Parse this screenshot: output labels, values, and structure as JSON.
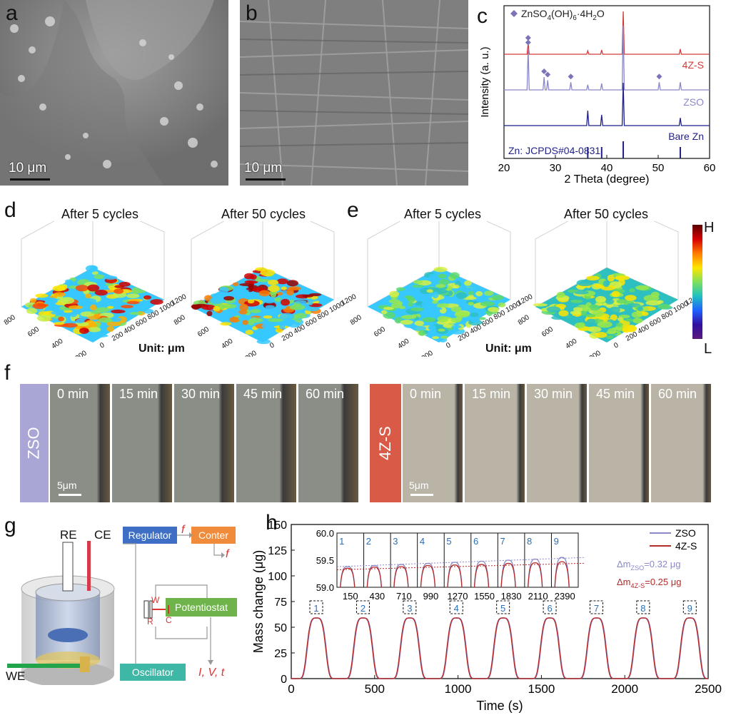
{
  "panel_labels": {
    "a": "a",
    "b": "b",
    "c": "c",
    "d": "d",
    "e": "e",
    "f": "f",
    "g": "g",
    "h": "h"
  },
  "panel_a": {
    "scale": "10 μm"
  },
  "panel_b": {
    "scale": "10 μm"
  },
  "panel_c": {
    "legend": "ZnSO4(OH)6·4H2O",
    "legend_parts": {
      "a": "ZnSO",
      "b": "4",
      "c": "(OH)",
      "d": "6",
      "e": "·4H",
      "f": "2",
      "g": "O"
    },
    "ylabel": "Intensity (a. u.)",
    "xlabel": "2 Theta (degree)",
    "xticks": [
      "20",
      "30",
      "40",
      "50",
      "60"
    ],
    "trace_labels": {
      "z4s": "4Z-S",
      "zso": "ZSO",
      "bare": "Bare Zn"
    },
    "ref": "Zn: JCPDS#04-0831",
    "colors": {
      "z4s": "#d23a3a",
      "zso": "#8a88c8",
      "bare": "#1f1f8a",
      "marker": "#7b74b8"
    }
  },
  "chart_data": [
    {
      "type": "line",
      "title": "",
      "xlabel": "2 Theta (degree)",
      "ylabel": "Intensity (a. u.)",
      "xlim": [
        20,
        60
      ],
      "series": [
        {
          "name": "4Z-S",
          "peaks": [
            [
              24.7,
              0.25
            ],
            [
              36.3,
              0.08
            ],
            [
              39.0,
              0.1
            ],
            [
              43.2,
              1.0
            ],
            [
              54.3,
              0.12
            ]
          ]
        },
        {
          "name": "ZSO",
          "peaks": [
            [
              24.7,
              0.65
            ],
            [
              27.8,
              0.2
            ],
            [
              28.5,
              0.15
            ],
            [
              33.0,
              0.12
            ],
            [
              36.3,
              0.08
            ],
            [
              39.0,
              0.1
            ],
            [
              43.2,
              1.0
            ],
            [
              50.2,
              0.12
            ],
            [
              54.3,
              0.12
            ]
          ]
        },
        {
          "name": "Bare Zn",
          "peaks": [
            [
              36.3,
              0.35
            ],
            [
              39.0,
              0.25
            ],
            [
              43.2,
              1.0
            ],
            [
              54.3,
              0.18
            ]
          ]
        }
      ],
      "reference": "Zn: JCPDS#04-0831",
      "reference_lines": [
        36.3,
        39.0,
        43.2,
        54.3
      ]
    },
    {
      "type": "line",
      "xlabel": "Time (s)",
      "ylabel": "Mass change (μg)",
      "xlim": [
        0,
        2500
      ],
      "ylim": [
        0,
        150
      ],
      "xticks": [
        0,
        500,
        1000,
        1500,
        2000,
        2500
      ],
      "yticks": [
        0,
        25,
        50,
        75,
        100,
        125,
        150
      ],
      "series": [
        {
          "name": "ZSO"
        },
        {
          "name": "4Z-S"
        }
      ],
      "peak_centers": [
        150,
        430,
        710,
        990,
        1270,
        1550,
        1830,
        2110,
        2390
      ],
      "peak_height": 59,
      "inset": {
        "ylim": [
          59.0,
          60.0
        ],
        "yticks": [
          "60.0",
          "59.5",
          "59.0"
        ],
        "xticks": [
          "150",
          "430",
          "710",
          "990",
          "1270",
          "1550",
          "1830",
          "2110",
          "2390"
        ],
        "cycle_numbers": [
          "1",
          "2",
          "3",
          "4",
          "5",
          "6",
          "7",
          "8",
          "9"
        ],
        "zso_peaks": [
          59.38,
          59.4,
          59.42,
          59.44,
          59.46,
          59.48,
          59.5,
          59.52,
          59.55
        ],
        "z4s_peaks": [
          59.35,
          59.37,
          59.38,
          59.4,
          59.41,
          59.42,
          59.44,
          59.45,
          59.47
        ]
      },
      "annotations": [
        "Δm_ZSO=0.32 μg",
        "Δm_4Z-S=0.25 μg"
      ]
    }
  ],
  "panel_d": {
    "t1": "After 5 cycles",
    "t2": "After 50 cycles",
    "unit": "Unit: μm"
  },
  "panel_e": {
    "t1": "After 5 cycles",
    "t2": "After 50 cycles",
    "unit": "Unit: μm"
  },
  "axes3d": {
    "right": [
      "0",
      "200",
      "400",
      "600",
      "800",
      "1000",
      "1200"
    ],
    "left": [
      "200",
      "400",
      "600",
      "800"
    ]
  },
  "colorbar": {
    "high": "H",
    "low": "L"
  },
  "panel_f": {
    "zso_label": "ZSO",
    "z4s_label": "4Z-S",
    "times": [
      "0 min",
      "15 min",
      "30 min",
      "45 min",
      "60 min"
    ],
    "scale": "5μm",
    "zso_color": "#a9a6d6",
    "z4s_color": "#d95a47"
  },
  "panel_g": {
    "re": "RE",
    "ce": "CE",
    "we": "WE",
    "regulator": "Regulator",
    "conter": "Conter",
    "potentiostat": "Potentiostat",
    "oscillator": "Oscillator",
    "f": "f",
    "w": "W",
    "r": "R",
    "c": "C",
    "outputs": "I, V, t",
    "colors": {
      "regulator": "#3e6fc4",
      "conter": "#ef8b3a",
      "potentiostat": "#6fb44a",
      "oscillator": "#3fb7a7"
    }
  },
  "panel_h": {
    "ylabel": "Mass change (μg)",
    "xlabel": "Time (s)",
    "xticks": [
      "0",
      "500",
      "1000",
      "1500",
      "2000",
      "2500"
    ],
    "yticks": [
      "0",
      "25",
      "50",
      "75",
      "100",
      "125",
      "150"
    ],
    "legend": {
      "zso": "ZSO",
      "z4s": "4Z-S"
    },
    "dm_zso_a": "Δm",
    "dm_zso_sub": "ZSO",
    "dm_zso_b": "=0.32 μg",
    "dm_z4s_a": "Δm",
    "dm_z4s_sub": "4Z-S",
    "dm_z4s_b": "=0.25 μg",
    "colors": {
      "zso": "#8a88c8",
      "z4s": "#b32a2a"
    }
  }
}
